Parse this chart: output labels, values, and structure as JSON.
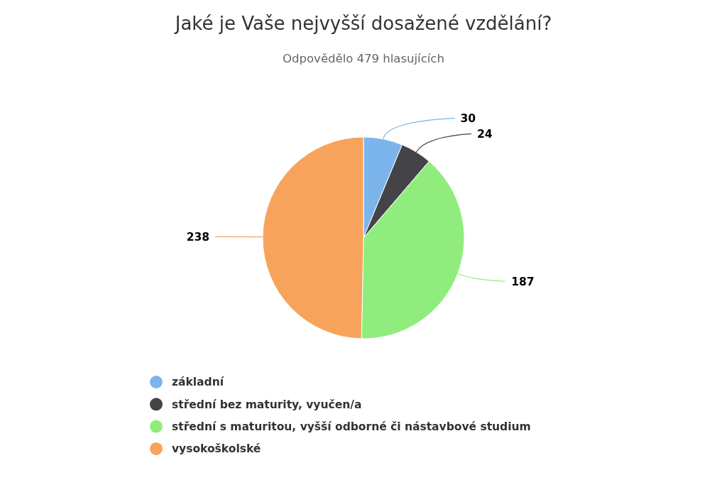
{
  "chart_data": {
    "type": "pie",
    "title": "Jaké je Vaše nejvyšší dosažené vzdělání?",
    "subtitle": "Odpovědělo 479 hlasujících",
    "categories": [
      "základní",
      "střední bez maturity, vyučen/a",
      "střední s maturitou, vyšší odborné či nástavbové studium",
      "vysokoškolské"
    ],
    "values": [
      30,
      24,
      187,
      238
    ],
    "colors": [
      "#7cb5ec",
      "#434348",
      "#90ed7d",
      "#f7a35c"
    ],
    "data_labels": true,
    "legend": "bottom"
  }
}
